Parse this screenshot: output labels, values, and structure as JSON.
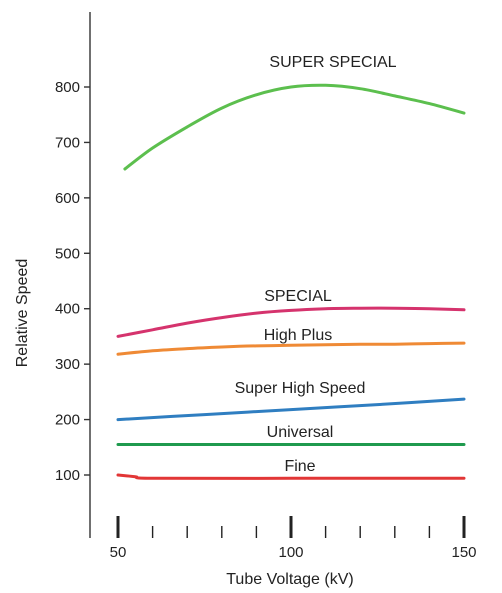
{
  "chart_data": {
    "type": "line",
    "title": "",
    "xlabel": "Tube Voltage (kV)",
    "ylabel": "Relative Speed",
    "xlim": [
      50,
      150
    ],
    "ylim": [
      0,
      900
    ],
    "x_ticks": [
      50,
      100,
      150
    ],
    "y_ticks": [
      100,
      200,
      300,
      400,
      500,
      600,
      700,
      800
    ],
    "grid": false,
    "legend": "none",
    "series": [
      {
        "name": "SUPER SPECIAL",
        "color": "#5cbf4e",
        "x": [
          52,
          60,
          70,
          80,
          90,
          100,
          110,
          120,
          130,
          140,
          150
        ],
        "y": [
          652,
          690,
          728,
          762,
          786,
          800,
          803,
          797,
          784,
          770,
          753
        ]
      },
      {
        "name": "SPECIAL",
        "color": "#d5336d",
        "x": [
          50,
          60,
          70,
          80,
          90,
          100,
          110,
          120,
          130,
          140,
          150
        ],
        "y": [
          350,
          362,
          374,
          384,
          392,
          397,
          400,
          401,
          401,
          400,
          398
        ]
      },
      {
        "name": "High Plus",
        "color": "#ef8a35",
        "x": [
          50,
          60,
          70,
          80,
          90,
          100,
          110,
          120,
          130,
          140,
          150
        ],
        "y": [
          318,
          324,
          328,
          331,
          333,
          334,
          335,
          336,
          336,
          337,
          338
        ]
      },
      {
        "name": "Super High Speed",
        "color": "#2f7ec1",
        "x": [
          50,
          75,
          100,
          125,
          150
        ],
        "y": [
          200,
          209,
          218,
          227,
          237
        ]
      },
      {
        "name": "Universal",
        "color": "#1f9a4e",
        "x": [
          50,
          150
        ],
        "y": [
          155,
          155
        ]
      },
      {
        "name": "Fine",
        "color": "#e23636",
        "x": [
          50,
          55,
          60,
          100,
          150
        ],
        "y": [
          100,
          97,
          94,
          94,
          94
        ]
      }
    ]
  }
}
